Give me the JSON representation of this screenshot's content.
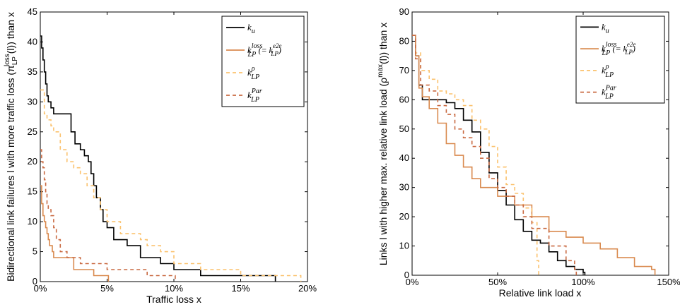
{
  "chart_data": [
    {
      "type": "line",
      "xlabel": "Traffic loss x",
      "ylabel_main": "Bidirectional link failures l with more traffic loss (π",
      "ylabel_sub": "LP",
      "ylabel_sup": "loss",
      "ylabel_tail": "(l)) than x",
      "xlim": [
        0,
        0.2
      ],
      "ylim": [
        0,
        45
      ],
      "xticks": [
        0,
        0.05,
        0.1,
        0.15,
        0.2
      ],
      "xtick_labels": [
        "0%",
        "5%",
        "10%",
        "15%",
        "20%"
      ],
      "yticks": [
        0,
        5,
        10,
        15,
        20,
        25,
        30,
        35,
        40,
        45
      ],
      "ytick_labels": [
        "0",
        "5",
        "10",
        "15",
        "20",
        "25",
        "30",
        "35",
        "40",
        "45"
      ],
      "legend_position": "top-right",
      "series": [
        {
          "legend": {
            "base": "k",
            "sub": "u",
            "sup": "",
            "extra": ""
          },
          "color": "#000000",
          "dash": "",
          "x": [
            0,
            0.001,
            0.002,
            0.003,
            0.004,
            0.005,
            0.006,
            0.008,
            0.01,
            0.013,
            0.016,
            0.02,
            0.023,
            0.026,
            0.03,
            0.033,
            0.036,
            0.038,
            0.04,
            0.042,
            0.045,
            0.047,
            0.05,
            0.055,
            0.065,
            0.075,
            0.09,
            0.1,
            0.12,
            0.14,
            0.16,
            0.175,
            0.176
          ],
          "y": [
            41,
            39,
            37,
            35,
            33,
            31,
            30,
            29,
            28,
            28,
            28,
            28,
            25,
            23,
            22,
            21,
            20,
            18,
            16,
            14,
            12,
            10,
            9,
            7,
            6,
            4,
            3,
            2,
            1,
            1,
            1,
            1,
            0
          ]
        },
        {
          "legend": {
            "base": "k",
            "sub": "LP",
            "sup": "loss",
            "extra": "(= k_LP^e2e)"
          },
          "color": "#d98a4f",
          "dash": "",
          "x": [
            0,
            0.001,
            0.002,
            0.003,
            0.004,
            0.005,
            0.006,
            0.007,
            0.008,
            0.009,
            0.01,
            0.012,
            0.015,
            0.02,
            0.025,
            0.03,
            0.04,
            0.05,
            0.051
          ],
          "y": [
            16,
            13,
            11,
            10,
            9,
            8,
            7,
            6,
            6,
            5,
            4,
            4,
            4,
            4,
            2,
            2,
            1,
            1,
            0
          ]
        },
        {
          "legend": {
            "base": "k",
            "sub": "LP",
            "sup": "ρ",
            "extra": ""
          },
          "color": "#fbc26e",
          "dash": "5,4",
          "x": [
            0,
            0.003,
            0.005,
            0.008,
            0.01,
            0.015,
            0.02,
            0.025,
            0.03,
            0.035,
            0.04,
            0.045,
            0.05,
            0.06,
            0.07,
            0.075,
            0.08,
            0.09,
            0.1,
            0.12,
            0.15,
            0.19,
            0.195
          ],
          "y": [
            32,
            28,
            27,
            26,
            25,
            22,
            20,
            19,
            18,
            16,
            14,
            12,
            10,
            8,
            8,
            7,
            6,
            5,
            3,
            2,
            1,
            1,
            0
          ]
        },
        {
          "legend": {
            "base": "k",
            "sub": "LP",
            "sup": "Par",
            "extra": ""
          },
          "color": "#c96a42",
          "dash": "5,4",
          "x": [
            0,
            0.001,
            0.002,
            0.003,
            0.004,
            0.005,
            0.006,
            0.008,
            0.01,
            0.012,
            0.015,
            0.02,
            0.025,
            0.03,
            0.04,
            0.05,
            0.08,
            0.1,
            0.101
          ],
          "y": [
            22,
            20,
            19,
            17,
            15,
            13,
            12,
            11,
            9,
            7,
            5,
            4,
            4,
            3,
            3,
            2,
            1,
            1,
            0
          ]
        }
      ]
    },
    {
      "type": "line",
      "xlabel": "Relative link load x",
      "ylabel_main": "Links l with higher max. relative link load (ρ",
      "ylabel_sub": "",
      "ylabel_sup": "max",
      "ylabel_tail": "(l)) than x",
      "xlim": [
        0,
        1.5
      ],
      "ylim": [
        0,
        90
      ],
      "xticks": [
        0,
        0.5,
        1.0,
        1.5
      ],
      "xtick_labels": [
        "0%",
        "50%",
        "100%",
        "150%"
      ],
      "yticks": [
        0,
        10,
        20,
        30,
        40,
        50,
        60,
        70,
        80,
        90
      ],
      "ytick_labels": [
        "0",
        "10",
        "20",
        "30",
        "40",
        "50",
        "60",
        "70",
        "80",
        "90"
      ],
      "legend_position": "top-right",
      "series": [
        {
          "legend": {
            "base": "k",
            "sub": "u",
            "sup": "",
            "extra": ""
          },
          "color": "#000000",
          "dash": "",
          "x": [
            0,
            0.02,
            0.04,
            0.06,
            0.08,
            0.1,
            0.2,
            0.25,
            0.3,
            0.35,
            0.4,
            0.45,
            0.5,
            0.55,
            0.6,
            0.65,
            0.7,
            0.75,
            0.8,
            0.85,
            0.9,
            0.95,
            1.0,
            1.01
          ],
          "y": [
            82,
            75,
            65,
            60,
            60,
            60,
            59,
            57,
            53,
            49,
            42,
            35,
            29,
            24,
            19,
            15,
            12,
            11,
            8,
            5,
            3,
            2,
            1,
            0
          ]
        },
        {
          "legend": {
            "base": "k",
            "sub": "LP",
            "sup": "loss",
            "extra": "(= k_LP^e2e)"
          },
          "color": "#d98a4f",
          "dash": "",
          "x": [
            0,
            0.02,
            0.04,
            0.06,
            0.1,
            0.15,
            0.2,
            0.25,
            0.3,
            0.35,
            0.4,
            0.5,
            0.6,
            0.7,
            0.8,
            0.9,
            1.0,
            1.1,
            1.2,
            1.3,
            1.4,
            1.42
          ],
          "y": [
            82,
            75,
            64,
            61,
            57,
            52,
            45,
            41,
            37,
            33,
            30,
            27,
            24,
            20,
            15,
            13,
            11,
            9,
            6,
            3,
            2,
            0
          ]
        },
        {
          "legend": {
            "base": "k",
            "sub": "LP",
            "sup": "ρ",
            "extra": ""
          },
          "color": "#fbc26e",
          "dash": "5,4",
          "x": [
            0,
            0.02,
            0.05,
            0.1,
            0.15,
            0.2,
            0.25,
            0.3,
            0.35,
            0.4,
            0.45,
            0.5,
            0.55,
            0.6,
            0.65,
            0.7,
            0.73,
            0.74
          ],
          "y": [
            82,
            76,
            70,
            67,
            63,
            62,
            60,
            58,
            53,
            50,
            44,
            37,
            31,
            28,
            23,
            18,
            5,
            0
          ]
        },
        {
          "legend": {
            "base": "k",
            "sub": "LP",
            "sup": "Par",
            "extra": ""
          },
          "color": "#c96a42",
          "dash": "5,4",
          "x": [
            0,
            0.02,
            0.05,
            0.1,
            0.15,
            0.2,
            0.25,
            0.3,
            0.35,
            0.4,
            0.45,
            0.5,
            0.55,
            0.6,
            0.65,
            0.7,
            0.8,
            0.9,
            0.95,
            0.96
          ],
          "y": [
            82,
            74,
            65,
            63,
            58,
            55,
            50,
            47,
            44,
            40,
            33,
            30,
            27,
            24,
            20,
            16,
            10,
            5,
            2,
            0
          ]
        }
      ]
    }
  ]
}
